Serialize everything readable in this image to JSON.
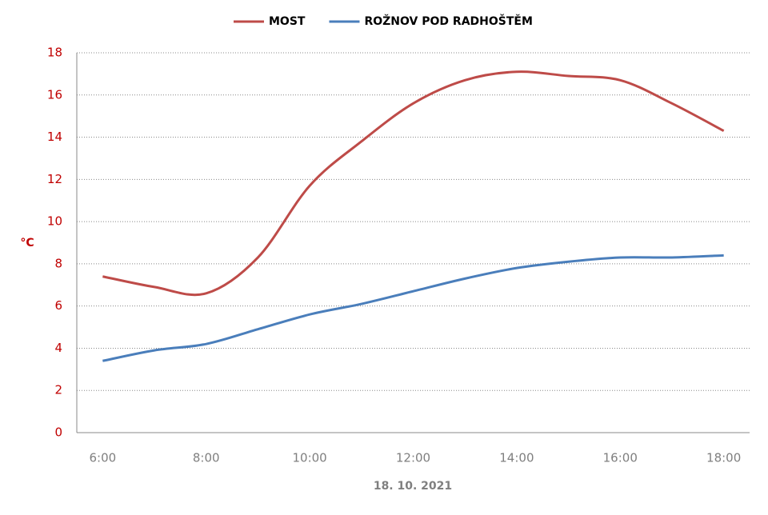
{
  "chart_data": {
    "type": "line",
    "y_axis_label": "°C",
    "x_axis_label": "18. 10. 2021",
    "categories": [
      "6:00",
      null,
      "8:00",
      null,
      "10:00",
      null,
      "12:00",
      null,
      "14:00",
      null,
      "16:00",
      null,
      "18:00"
    ],
    "series": [
      {
        "name": "MOST",
        "color": "#be4b48",
        "values": [
          7.4,
          6.9,
          6.6,
          8.3,
          11.7,
          13.8,
          15.6,
          16.7,
          17.1,
          16.9,
          16.7,
          15.6,
          14.3
        ]
      },
      {
        "name": "ROŽNOV POD RADHOŠTĚM",
        "color": "#4a7ebb",
        "values": [
          3.4,
          3.9,
          4.2,
          4.9,
          5.6,
          6.1,
          6.7,
          7.3,
          7.8,
          8.1,
          8.3,
          8.3,
          8.4
        ]
      }
    ],
    "ylim": [
      0,
      18
    ],
    "yticks": [
      0,
      2,
      4,
      6,
      8,
      10,
      12,
      14,
      16,
      18
    ],
    "grid": true,
    "legend": "top",
    "smooth": true
  }
}
